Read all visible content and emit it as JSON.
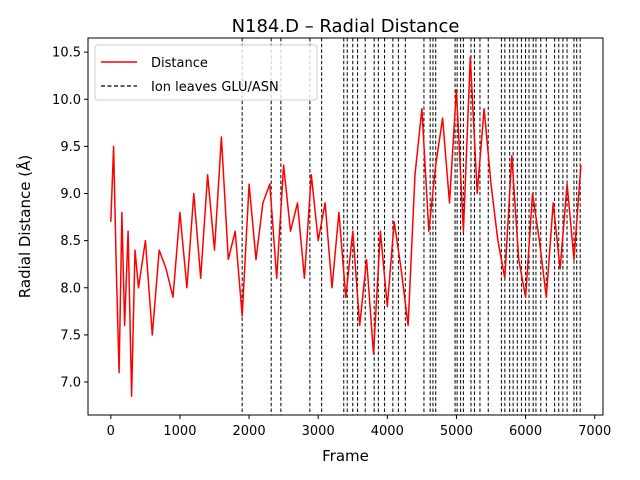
{
  "chart_data": {
    "type": "line",
    "title": "N184.D – Radial Distance",
    "xlabel": "Frame",
    "ylabel": "Radial Distance (Å)",
    "xlim": [
      -330,
      7120
    ],
    "ylim": [
      6.65,
      10.65
    ],
    "xticks": [
      0,
      1000,
      2000,
      3000,
      4000,
      5000,
      6000,
      7000
    ],
    "yticks": [
      7.0,
      7.5,
      8.0,
      8.5,
      9.0,
      9.5,
      10.0,
      10.5
    ],
    "xtick_labels": [
      "0",
      "1000",
      "2000",
      "3000",
      "4000",
      "5000",
      "6000",
      "7000"
    ],
    "ytick_labels": [
      "7.0",
      "7.5",
      "8.0",
      "8.5",
      "9.0",
      "9.5",
      "10.0",
      "10.5"
    ],
    "grid": false,
    "legend_position": "top-left",
    "series": [
      {
        "name": "Distance",
        "color": "#ff0000",
        "style": "solid",
        "x": [
          0,
          40,
          80,
          120,
          160,
          200,
          250,
          300,
          350,
          400,
          500,
          600,
          700,
          800,
          900,
          1000,
          1100,
          1200,
          1300,
          1400,
          1500,
          1600,
          1700,
          1800,
          1900,
          2000,
          2100,
          2200,
          2300,
          2400,
          2500,
          2600,
          2700,
          2800,
          2900,
          3000,
          3100,
          3200,
          3300,
          3400,
          3500,
          3600,
          3700,
          3800,
          3900,
          4000,
          4100,
          4200,
          4300,
          4400,
          4500,
          4600,
          4700,
          4800,
          4900,
          5000,
          5100,
          5200,
          5300,
          5400,
          5500,
          5600,
          5700,
          5800,
          5900,
          6000,
          6100,
          6200,
          6300,
          6400,
          6500,
          6600,
          6700,
          6800
        ],
        "y": [
          8.7,
          9.5,
          8.2,
          7.1,
          8.8,
          7.6,
          8.6,
          6.85,
          8.4,
          8.0,
          8.5,
          7.5,
          8.4,
          8.2,
          7.9,
          8.8,
          8.0,
          9.0,
          8.1,
          9.2,
          8.4,
          9.6,
          8.3,
          8.6,
          7.7,
          9.1,
          8.3,
          8.9,
          9.1,
          8.1,
          9.3,
          8.6,
          8.9,
          8.1,
          9.2,
          8.5,
          8.9,
          8.0,
          8.8,
          7.9,
          8.6,
          7.6,
          8.3,
          7.3,
          8.6,
          7.8,
          8.7,
          8.2,
          7.6,
          9.2,
          9.9,
          8.6,
          9.3,
          9.8,
          8.9,
          10.1,
          8.6,
          10.45,
          9.0,
          9.9,
          9.1,
          8.5,
          8.1,
          9.4,
          8.3,
          7.9,
          9.0,
          8.5,
          7.9,
          8.9,
          8.2,
          9.1,
          8.3,
          9.3
        ]
      },
      {
        "name": "Ion leaves GLU/ASN",
        "color": "#000000",
        "style": "dashed",
        "x": [
          1900,
          2320,
          2460,
          2880,
          3050,
          3370,
          3420,
          3500,
          3570,
          3680,
          3810,
          3870,
          3960,
          4080,
          4160,
          4260,
          4530,
          4620,
          4660,
          4700,
          4980,
          5010,
          5060,
          5100,
          5210,
          5260,
          5340,
          5460,
          5650,
          5700,
          5770,
          5820,
          5880,
          5940,
          6000,
          6050,
          6110,
          6150,
          6220,
          6300,
          6420,
          6480,
          6540,
          6600,
          6700,
          6740,
          6790
        ]
      }
    ]
  }
}
